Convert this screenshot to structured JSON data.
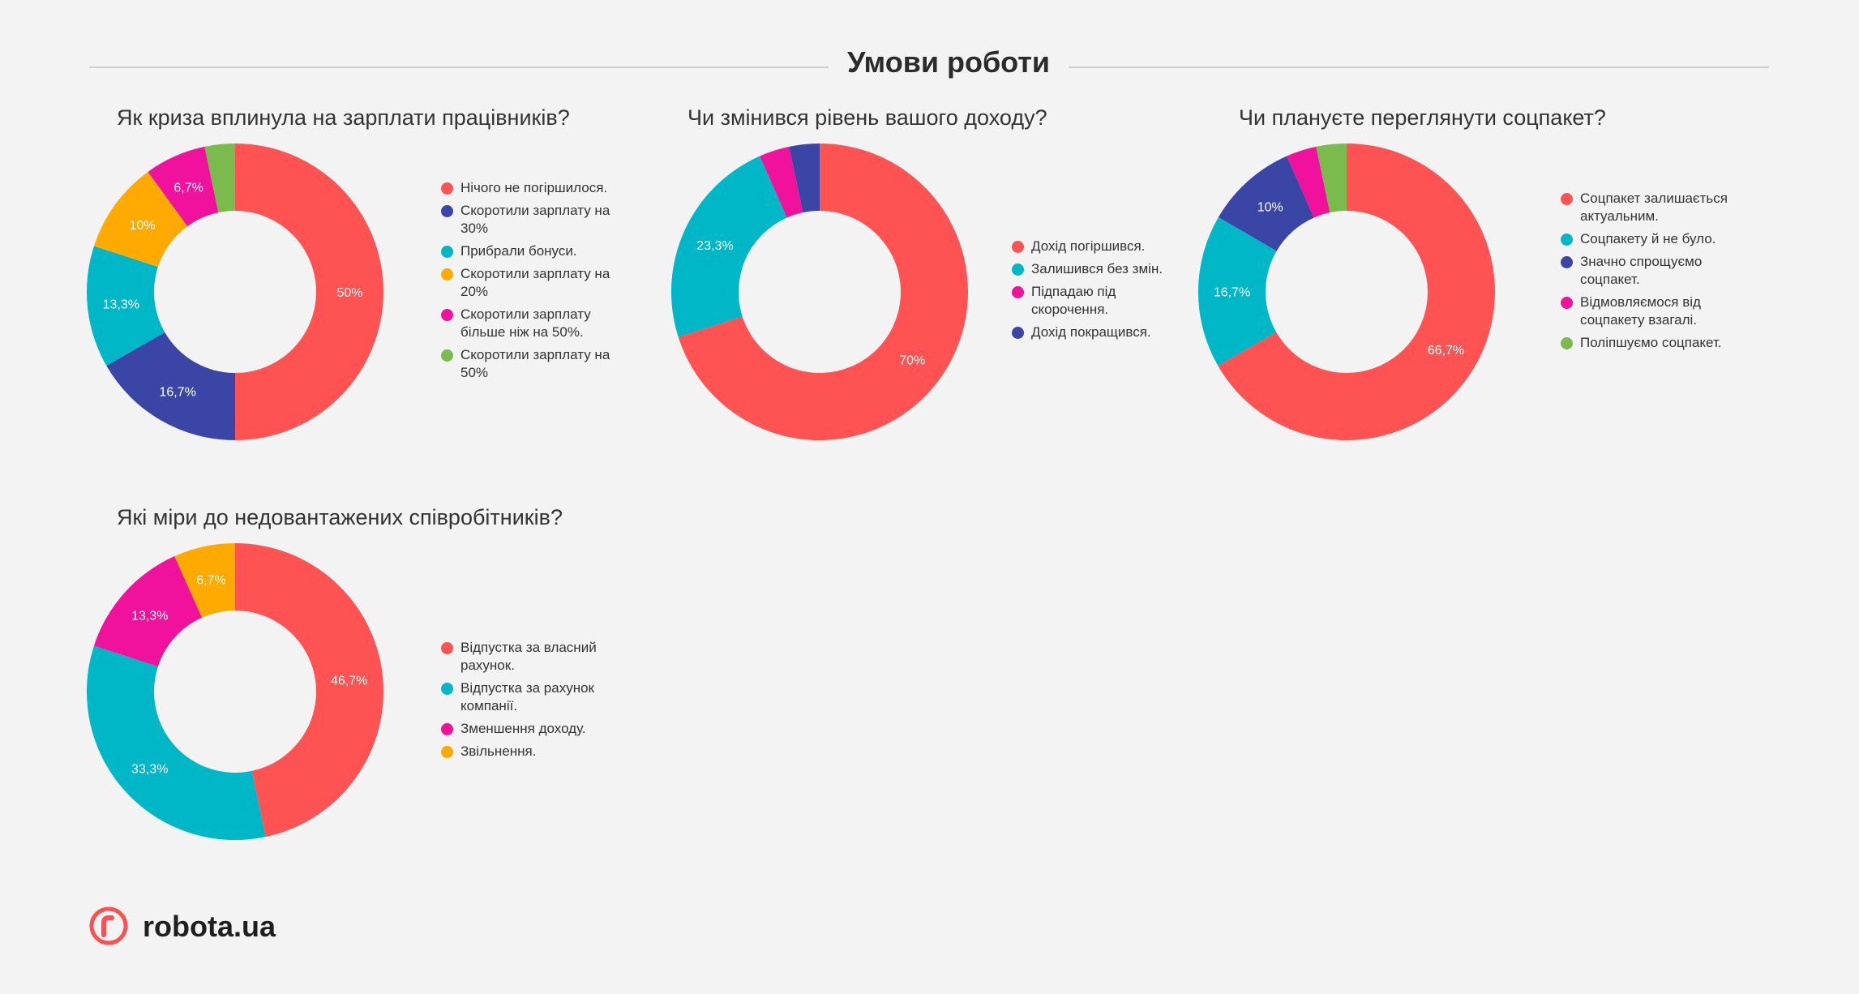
{
  "header": {
    "title": "Умови роботи"
  },
  "colors": {
    "red": "#ff5252",
    "navy": "#3a45a5",
    "teal": "#00b7c7",
    "orange": "#ffaa00",
    "pink": "#f0129c",
    "green": "#7bbb4d"
  },
  "chart_data": [
    {
      "type": "pie",
      "title": "Як криза вплинула на зарплати працівників?",
      "categories": [
        "Нічого не погіршилося.",
        "Скоротили зарплату на 30%",
        "Прибрали бонуси.",
        "Скоротили зарплату на 20%",
        "Скоротили зарплату більше ніж на 50%.",
        "Скоротили зарплату на 50%"
      ],
      "values": [
        50,
        16.7,
        13.3,
        10,
        6.7,
        3.3
      ],
      "data_labels": [
        "50%",
        "16,7%",
        "13,3%",
        "10%",
        "6,7%",
        ""
      ],
      "colors": [
        "#ff5252",
        "#3a45a5",
        "#00b7c7",
        "#ffaa00",
        "#f0129c",
        "#7bbb4d"
      ],
      "legend": [
        "Нічого не погіршилося.",
        "Скоротили зарплату на 30%",
        "Прибрали бонуси.",
        "Скоротили зарплату на 20%",
        "Скоротили зарплату більше ніж на 50%.",
        "Скоротили зарплату на 50%"
      ],
      "legend_colors": [
        "#ff5252",
        "#3a45a5",
        "#00b7c7",
        "#ffaa00",
        "#f0129c",
        "#7bbb4d"
      ],
      "donut": true
    },
    {
      "type": "pie",
      "title": "Чи змінився рівень вашого доходу?",
      "categories": [
        "Дохід погіршився.",
        "Залишився без змін.",
        "Підпадаю під скорочення.",
        "Дохід покращився."
      ],
      "values": [
        70,
        23.3,
        3.3,
        3.3
      ],
      "data_labels": [
        "70%",
        "23,3%",
        "",
        ""
      ],
      "colors": [
        "#ff5252",
        "#00b7c7",
        "#f0129c",
        "#3a45a5"
      ],
      "legend": [
        "Дохід погіршився.",
        "Залишився без змін.",
        "Підпадаю під скорочення.",
        "Дохід покращився."
      ],
      "legend_colors": [
        "#ff5252",
        "#00b7c7",
        "#f0129c",
        "#3a45a5"
      ],
      "donut": true
    },
    {
      "type": "pie",
      "title": "Чи плануєте переглянути соцпакет?",
      "categories": [
        "Соцпакет залишається актуальним.",
        "Соцпакету й не було.",
        "Значно спрощуємо соцпакет.",
        "Відмовляємося від соцпакету взагалі.",
        "Поліпшуємо соцпакет."
      ],
      "values": [
        66.7,
        16.7,
        10,
        3.3,
        3.3
      ],
      "data_labels": [
        "66,7%",
        "16,7%",
        "10%",
        "",
        ""
      ],
      "colors": [
        "#ff5252",
        "#00b7c7",
        "#3a45a5",
        "#f0129c",
        "#7bbb4d"
      ],
      "legend": [
        "Соцпакет залишається актуальним.",
        "Соцпакету й не було.",
        "Значно спрощуємо соцпакет.",
        "Відмовляємося від соцпакету взагалі.",
        "Поліпшуємо соцпакет."
      ],
      "legend_colors": [
        "#ff5252",
        "#00b7c7",
        "#3a45a5",
        "#f0129c",
        "#7bbb4d"
      ],
      "donut": true
    },
    {
      "type": "pie",
      "title": "Які міри до недовантажених співробітників?",
      "categories": [
        "Відпустка за власний рахунок.",
        "Відпустка за рахунок компанії.",
        "Зменшення доходу.",
        "Звільнення."
      ],
      "values": [
        46.7,
        33.3,
        13.3,
        6.7
      ],
      "data_labels": [
        "46,7%",
        "33,3%",
        "13,3%",
        "6,7%"
      ],
      "colors": [
        "#ff5252",
        "#00b7c7",
        "#f0129c",
        "#ffaa00"
      ],
      "legend": [
        "Відпустка за власний рахунок.",
        "Відпустка за рахунок компанії.",
        "Зменшення доходу.",
        "Звільнення."
      ],
      "legend_colors": [
        "#ff5252",
        "#00b7c7",
        "#f0129c",
        "#ffaa00"
      ],
      "donut": true
    }
  ],
  "logo": {
    "text": "robota.ua",
    "icon": "robota-logo-icon"
  }
}
